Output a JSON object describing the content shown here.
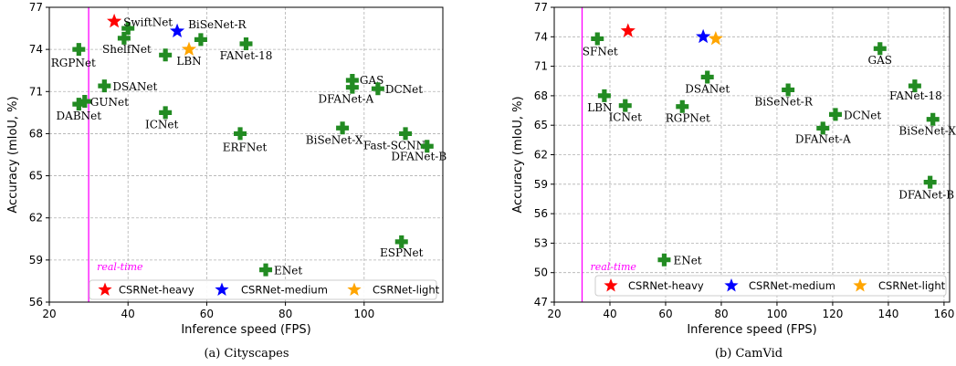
{
  "legend_entries": [
    {
      "label": "CSRNet-heavy",
      "color": "#ff0000"
    },
    {
      "label": "CSRNet-medium",
      "color": "#0000ff"
    },
    {
      "label": "CSRNet-light",
      "color": "#ffa500"
    }
  ],
  "chart_data": [
    {
      "type": "scatter",
      "caption": "(a) Cityscapes",
      "xlabel": "Inference speed (FPS)",
      "ylabel": "Accuracy (mIoU, %)",
      "xlim": [
        20,
        120
      ],
      "ylim": [
        56,
        77
      ],
      "xticks": [
        20,
        40,
        60,
        80,
        100
      ],
      "yticks": [
        56,
        59,
        62,
        65,
        68,
        71,
        74,
        77
      ],
      "grid": true,
      "realtime_line": {
        "x": 30,
        "label": "real-time",
        "color": "#ff00ff"
      },
      "legend_position": "bottom",
      "series": [
        {
          "name": "CSRNet-heavy",
          "marker": "star",
          "color": "#ff0000",
          "points": [
            {
              "x": 36.5,
              "y": 76.0,
              "label": "SwiftNet"
            }
          ]
        },
        {
          "name": "CSRNet-medium",
          "marker": "star",
          "color": "#0000ff",
          "points": [
            {
              "x": 52.5,
              "y": 75.3,
              "label": "BiSeNet-R"
            }
          ]
        },
        {
          "name": "CSRNet-light",
          "marker": "star",
          "color": "#ffa500",
          "points": [
            {
              "x": 55.5,
              "y": 74.0,
              "label": "LBN"
            }
          ]
        },
        {
          "marker": "plus",
          "color": "#228b22",
          "points": [
            {
              "x": 40.0,
              "y": 75.5,
              "label": ""
            },
            {
              "x": 39.0,
              "y": 74.8,
              "label": "ShelfNet"
            },
            {
              "x": 58.5,
              "y": 74.7,
              "label": ""
            },
            {
              "x": 49.5,
              "y": 73.6,
              "label": ""
            },
            {
              "x": 70.0,
              "y": 74.4,
              "label": "FANet-18"
            },
            {
              "x": 27.5,
              "y": 74.0,
              "label": "RGPNet"
            },
            {
              "x": 34.0,
              "y": 71.4,
              "label": "DSANet"
            },
            {
              "x": 29.0,
              "y": 70.3,
              "label": "GUNet"
            },
            {
              "x": 27.5,
              "y": 70.1,
              "label": "DABNet"
            },
            {
              "x": 49.5,
              "y": 69.5,
              "label": "ICNet"
            },
            {
              "x": 68.5,
              "y": 68.0,
              "label": "ERFNet"
            },
            {
              "x": 97.0,
              "y": 71.8,
              "label": "GAS"
            },
            {
              "x": 97.0,
              "y": 71.3,
              "label": "DFANet-A"
            },
            {
              "x": 103.5,
              "y": 71.2,
              "label": "DCNet"
            },
            {
              "x": 94.5,
              "y": 68.4,
              "label": "BiSeNet-X"
            },
            {
              "x": 110.5,
              "y": 68.0,
              "label": "Fast-SCNN"
            },
            {
              "x": 116.0,
              "y": 67.1,
              "label": "DFANet-B"
            },
            {
              "x": 109.5,
              "y": 60.3,
              "label": "ESPNet"
            },
            {
              "x": 75.0,
              "y": 58.3,
              "label": "ENet"
            }
          ]
        }
      ]
    },
    {
      "type": "scatter",
      "caption": "(b) CamVid",
      "xlabel": "Inference speed (FPS)",
      "ylabel": "Accuracy (mIoU, %)",
      "xlim": [
        20,
        162
      ],
      "ylim": [
        47,
        77
      ],
      "xticks": [
        20,
        40,
        60,
        80,
        100,
        120,
        140,
        160
      ],
      "yticks": [
        47,
        50,
        53,
        56,
        59,
        62,
        65,
        68,
        71,
        74,
        77
      ],
      "grid": true,
      "realtime_line": {
        "x": 30,
        "label": "real-time",
        "color": "#ff00ff"
      },
      "legend_position": "bottom",
      "series": [
        {
          "name": "CSRNet-heavy",
          "marker": "star",
          "color": "#ff0000",
          "points": [
            {
              "x": 46.5,
              "y": 74.6,
              "label": ""
            }
          ]
        },
        {
          "name": "CSRNet-medium",
          "marker": "star",
          "color": "#0000ff",
          "points": [
            {
              "x": 73.5,
              "y": 74.0,
              "label": ""
            }
          ]
        },
        {
          "name": "CSRNet-light",
          "marker": "star",
          "color": "#ffa500",
          "points": [
            {
              "x": 78.0,
              "y": 73.8,
              "label": ""
            }
          ]
        },
        {
          "marker": "plus",
          "color": "#228b22",
          "points": [
            {
              "x": 35.5,
              "y": 73.8,
              "label": "SFNet"
            },
            {
              "x": 137.0,
              "y": 72.8,
              "label": "GAS"
            },
            {
              "x": 75.0,
              "y": 69.9,
              "label": "DSANet"
            },
            {
              "x": 149.5,
              "y": 69.0,
              "label": "FANet-18"
            },
            {
              "x": 38.0,
              "y": 68.0,
              "label": "LBN"
            },
            {
              "x": 45.5,
              "y": 67.0,
              "label": "ICNet"
            },
            {
              "x": 66.0,
              "y": 66.9,
              "label": "RGPNet"
            },
            {
              "x": 104.0,
              "y": 68.6,
              "label": "BiSeNet-R"
            },
            {
              "x": 121.0,
              "y": 66.1,
              "label": "DCNet"
            },
            {
              "x": 116.5,
              "y": 64.7,
              "label": "DFANet-A"
            },
            {
              "x": 156.0,
              "y": 65.6,
              "label": "BiSeNet-X"
            },
            {
              "x": 155.0,
              "y": 59.2,
              "label": "DFANet-B"
            },
            {
              "x": 59.5,
              "y": 51.3,
              "label": "ENet"
            }
          ]
        }
      ]
    }
  ]
}
